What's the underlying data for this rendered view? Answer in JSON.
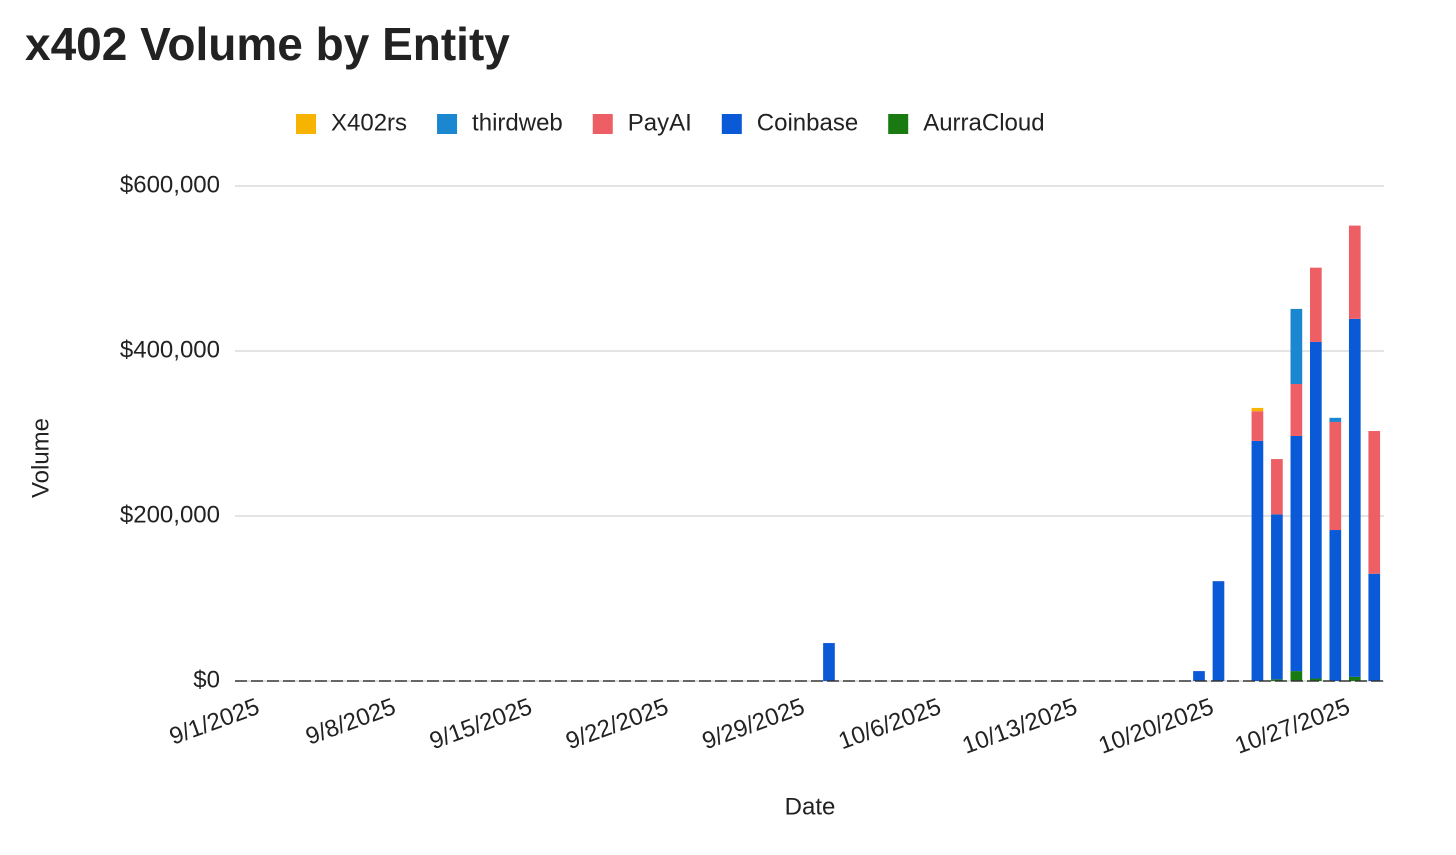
{
  "chart_data": {
    "type": "stacked_bar",
    "title": "x402 Volume by Entity",
    "x_label": "Date",
    "y_label": "Volume",
    "categories": [
      "9/1/2025",
      null,
      null,
      null,
      null,
      null,
      null,
      "9/8/2025",
      null,
      null,
      null,
      null,
      null,
      null,
      "9/15/2025",
      null,
      null,
      null,
      null,
      null,
      null,
      "9/22/2025",
      null,
      null,
      null,
      null,
      null,
      null,
      "9/29/2025",
      null,
      null,
      null,
      null,
      null,
      null,
      "10/6/2025",
      null,
      null,
      null,
      null,
      null,
      null,
      "10/13/2025",
      null,
      null,
      null,
      null,
      null,
      null,
      "10/20/2025",
      null,
      null,
      null,
      null,
      null,
      null,
      "10/27/2025",
      null,
      null
    ],
    "series": [
      {
        "name": "X402rs",
        "color": "#f6b400",
        "values": [
          0,
          0,
          0,
          0,
          0,
          0,
          0,
          0,
          0,
          0,
          0,
          0,
          0,
          0,
          0,
          0,
          0,
          0,
          0,
          0,
          0,
          0,
          0,
          0,
          0,
          0,
          0,
          0,
          0,
          0,
          0,
          0,
          0,
          0,
          0,
          0,
          0,
          0,
          0,
          0,
          0,
          0,
          0,
          0,
          0,
          0,
          0,
          0,
          0,
          0,
          0,
          0,
          4000,
          0,
          0,
          0,
          0,
          0,
          0
        ]
      },
      {
        "name": "thirdweb",
        "color": "#1a87d0",
        "values": [
          0,
          0,
          0,
          0,
          0,
          0,
          0,
          0,
          0,
          0,
          0,
          0,
          0,
          0,
          0,
          0,
          0,
          0,
          0,
          0,
          0,
          0,
          0,
          0,
          0,
          0,
          0,
          0,
          0,
          0,
          0,
          0,
          0,
          0,
          0,
          0,
          0,
          0,
          0,
          0,
          0,
          0,
          0,
          0,
          0,
          0,
          0,
          0,
          0,
          0,
          0,
          0,
          0,
          0,
          91000,
          0,
          5000,
          0,
          0
        ]
      },
      {
        "name": "PayAI",
        "color": "#ee5e65",
        "values": [
          0,
          0,
          0,
          0,
          0,
          0,
          0,
          0,
          0,
          0,
          0,
          0,
          0,
          0,
          0,
          0,
          0,
          0,
          0,
          0,
          0,
          0,
          0,
          0,
          0,
          0,
          0,
          0,
          0,
          0,
          0,
          0,
          0,
          0,
          0,
          0,
          0,
          0,
          0,
          0,
          0,
          0,
          0,
          0,
          0,
          0,
          0,
          0,
          0,
          0,
          0,
          0,
          36000,
          67000,
          63000,
          90000,
          131000,
          113000,
          173000
        ]
      },
      {
        "name": "Coinbase",
        "color": "#0a5ad8",
        "values": [
          0,
          0,
          0,
          0,
          0,
          0,
          0,
          0,
          0,
          0,
          0,
          0,
          0,
          0,
          0,
          0,
          0,
          0,
          0,
          0,
          0,
          0,
          0,
          0,
          0,
          0,
          0,
          0,
          0,
          0,
          46000,
          0,
          0,
          0,
          0,
          0,
          0,
          0,
          0,
          0,
          0,
          0,
          0,
          0,
          0,
          0,
          0,
          0,
          0,
          12000,
          121000,
          0,
          291000,
          200000,
          285000,
          408000,
          183000,
          434000,
          130000
        ]
      },
      {
        "name": "AurraCloud",
        "color": "#197a12",
        "values": [
          0,
          0,
          0,
          0,
          0,
          0,
          0,
          0,
          0,
          0,
          0,
          0,
          0,
          0,
          0,
          0,
          0,
          0,
          0,
          0,
          0,
          0,
          0,
          0,
          0,
          0,
          0,
          0,
          0,
          0,
          0,
          0,
          0,
          0,
          0,
          0,
          0,
          0,
          0,
          0,
          0,
          0,
          0,
          0,
          0,
          0,
          0,
          0,
          0,
          0,
          0,
          0,
          0,
          2000,
          12000,
          3000,
          0,
          5000,
          0
        ]
      }
    ],
    "ylim": [
      0,
      600000
    ],
    "yticks": [
      {
        "value": 0,
        "label": "$0"
      },
      {
        "value": 200000,
        "label": "$200,000"
      },
      {
        "value": 400000,
        "label": "$400,000"
      },
      {
        "value": 600000,
        "label": "$600,000"
      }
    ],
    "grid": true,
    "legend": "top"
  }
}
